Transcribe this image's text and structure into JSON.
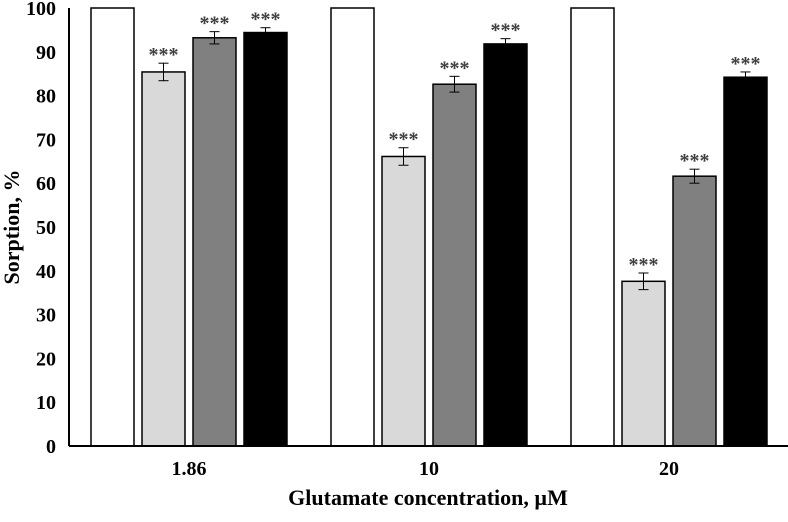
{
  "chart_data": {
    "type": "bar",
    "title": "",
    "xlabel": "Glutamate concentration, µM",
    "ylabel": "Sorption, %",
    "ylim": [
      0,
      100
    ],
    "yticks": [
      0,
      10,
      20,
      30,
      40,
      50,
      60,
      70,
      80,
      90,
      100
    ],
    "categories": [
      "1.86",
      "10",
      "20"
    ],
    "grid": false,
    "legend": "none",
    "series": [
      {
        "color": "#ffffff",
        "values": [
          100,
          100,
          100
        ],
        "errors": [
          0,
          0,
          0
        ],
        "annotations": [
          "",
          "",
          ""
        ]
      },
      {
        "color": "#d9d9d9",
        "values": [
          85.4,
          66.1,
          37.6
        ],
        "errors": [
          2.0,
          2.0,
          1.9
        ],
        "annotations": [
          "***",
          "***",
          "***"
        ]
      },
      {
        "color": "#808080",
        "values": [
          93.2,
          82.6,
          61.6
        ],
        "errors": [
          1.4,
          1.8,
          1.6
        ],
        "annotations": [
          "***",
          "***",
          "***"
        ]
      },
      {
        "color": "#000000",
        "values": [
          94.4,
          91.8,
          84.2
        ],
        "errors": [
          1.1,
          1.2,
          1.2
        ],
        "annotations": [
          "***",
          "***",
          "***"
        ]
      }
    ]
  }
}
